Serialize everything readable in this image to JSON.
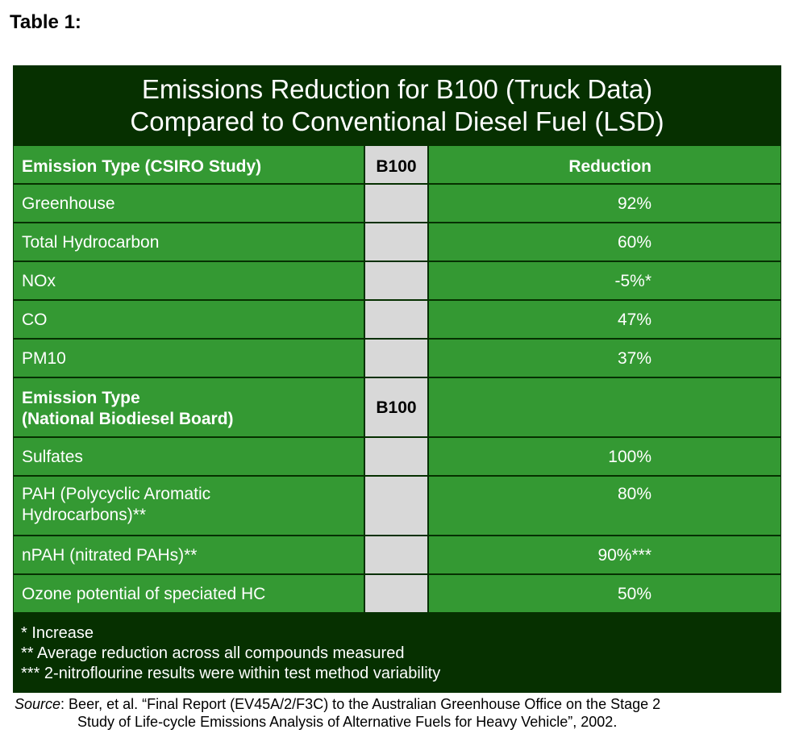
{
  "table_label": "Table 1:",
  "title": {
    "line1": "Emissions Reduction for B100 (Truck Data)",
    "line2": "Compared to Conventional Diesel Fuel (LSD)"
  },
  "section1": {
    "header": {
      "type": "Emission Type (CSIRO Study)",
      "fuel": "B100",
      "reduction": "Reduction"
    },
    "rows": [
      {
        "type": "Greenhouse",
        "reduction": "92%"
      },
      {
        "type": "Total Hydrocarbon",
        "reduction": "60%"
      },
      {
        "type": "NOx",
        "reduction": "-5%*"
      },
      {
        "type": "CO",
        "reduction": "47%"
      },
      {
        "type": "PM10",
        "reduction": "37%"
      }
    ]
  },
  "section2": {
    "header": {
      "type_line1": "Emission Type",
      "type_line2": "(National Biodiesel Board)",
      "fuel": "B100"
    },
    "rows": [
      {
        "type": "Sulfates",
        "reduction": "100%"
      },
      {
        "type_line1": "PAH (Polycyclic Aromatic",
        "type_line2": "Hydrocarbons)**",
        "reduction": "80%"
      },
      {
        "type": "nPAH (nitrated PAHs)**",
        "reduction": "90%***"
      },
      {
        "type": "Ozone potential of speciated HC",
        "reduction": "50%"
      }
    ]
  },
  "footnotes": [
    "* Increase",
    "** Average reduction across all compounds measured",
    "*** 2-nitroflourine results were within test method variability"
  ],
  "source": {
    "label": "Source",
    "line1": ": Beer, et al.  “Final Report (EV45A/2/F3C) to the Australian Greenhouse Office on the Stage 2",
    "line2": "Study of Life-cycle Emissions Analysis of Alternative Fuels for Heavy Vehicle”, 2002."
  }
}
